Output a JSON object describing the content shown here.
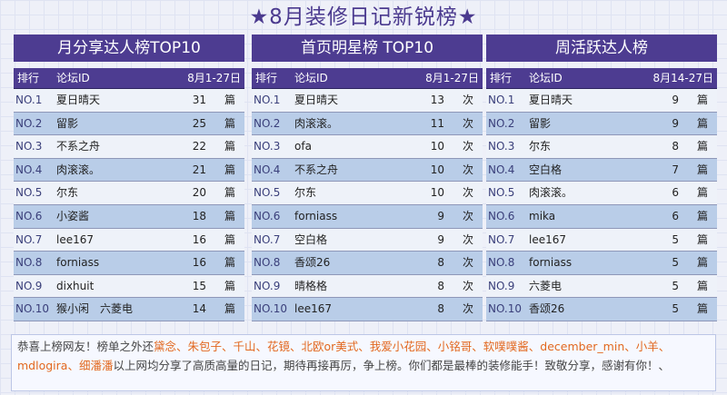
{
  "page_title": "★8月装修日记新锐榜★",
  "boards": [
    {
      "title": "月分享达人榜TOP10",
      "headers": {
        "rank": "排行",
        "id": "论坛ID",
        "period": "8月1-27日"
      },
      "unit": "篇",
      "rows": [
        {
          "rank": "NO.1",
          "name": "夏日晴天",
          "count": "31"
        },
        {
          "rank": "NO.2",
          "name": "留影",
          "count": "25"
        },
        {
          "rank": "NO.3",
          "name": "不系之舟",
          "count": "22"
        },
        {
          "rank": "NO.4",
          "name": "肉滚滚。",
          "count": "21"
        },
        {
          "rank": "NO.5",
          "name": "尔东",
          "count": "20"
        },
        {
          "rank": "NO.6",
          "name": "小姿酱",
          "count": "18"
        },
        {
          "rank": "NO.7",
          "name": "lee167",
          "count": "16"
        },
        {
          "rank": "NO.8",
          "name": "forniass",
          "count": "16"
        },
        {
          "rank": "NO.9",
          "name": "dixhuit",
          "count": "15"
        },
        {
          "rank": "NO.10",
          "name": "猴小闲　六菱电",
          "count": "14"
        }
      ]
    },
    {
      "title": "首页明星榜 TOP10",
      "headers": {
        "rank": "排行",
        "id": "论坛ID",
        "period": "8月1-27日"
      },
      "unit": "次",
      "rows": [
        {
          "rank": "NO.1",
          "name": "夏日晴天",
          "count": "13"
        },
        {
          "rank": "NO.2",
          "name": "肉滚滚。",
          "count": "11"
        },
        {
          "rank": "NO.3",
          "name": "ofa",
          "count": "10"
        },
        {
          "rank": "NO.4",
          "name": "不系之舟",
          "count": "10"
        },
        {
          "rank": "NO.5",
          "name": "尔东",
          "count": "10"
        },
        {
          "rank": "NO.6",
          "name": "forniass",
          "count": "9"
        },
        {
          "rank": "NO.7",
          "name": "空白格",
          "count": "9"
        },
        {
          "rank": "NO.8",
          "name": "香颂26",
          "count": "8"
        },
        {
          "rank": "NO.9",
          "name": "晴格格",
          "count": "8"
        },
        {
          "rank": "NO.10",
          "name": "lee167",
          "count": "8"
        }
      ]
    },
    {
      "title": "周活跃达人榜",
      "headers": {
        "rank": "排行",
        "id": "论坛ID",
        "period": "8月14-27日"
      },
      "unit": "篇",
      "rows": [
        {
          "rank": "NO.1",
          "name": "夏日晴天",
          "count": "9"
        },
        {
          "rank": "NO.2",
          "name": "留影",
          "count": "9"
        },
        {
          "rank": "NO.3",
          "name": "尔东",
          "count": "8"
        },
        {
          "rank": "NO.4",
          "name": "空白格",
          "count": "7"
        },
        {
          "rank": "NO.5",
          "name": "肉滚滚。",
          "count": "6"
        },
        {
          "rank": "NO.6",
          "name": "mika",
          "count": "6"
        },
        {
          "rank": "NO.7",
          "name": "lee167",
          "count": "5"
        },
        {
          "rank": "NO.8",
          "name": "forniass",
          "count": "5"
        },
        {
          "rank": "NO.9",
          "name": "六菱电",
          "count": "5"
        },
        {
          "rank": "NO.10",
          "name": "香颂26",
          "count": "5"
        }
      ]
    }
  ],
  "footer": {
    "lead": "恭喜上榜网友！榜单之外还",
    "names": "黛念、朱包子、千山、花镜、北欧or美式、我爱小花园、小铭哥、软噗噗酱、december_min、小羊、mdlogira、细潘潘",
    "message": "以上网均分享了高质高量的日记，期待再接再厉，争上榜。你们都是最棒的装修能手！致敬分享，感谢有你！、"
  }
}
